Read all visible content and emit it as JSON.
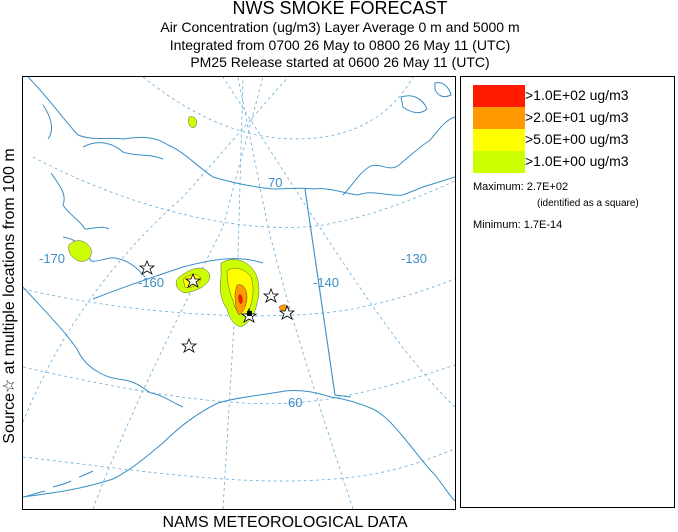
{
  "header": {
    "title": "NWS SMOKE FORECAST",
    "line2": "Air Concentration (ug/m3) Layer Average     0 m and  5000 m",
    "line3": "Integrated from 0700 26 May to 0800 26 May 11 (UTC)",
    "line4": "PM25 Release started at 0600 26 May 11 (UTC)"
  },
  "side_label": "Source☆ at multiple locations    from   100 m",
  "footer": "NAMS METEOROLOGICAL DATA",
  "legend": {
    "levels": [
      {
        "label": ">1.0E+02 ug/m3",
        "color": "#ff1a00"
      },
      {
        "label": ">2.0E+01 ug/m3",
        "color": "#ff9a00"
      },
      {
        "label": ">5.0E+00 ug/m3",
        "color": "#ffff00"
      },
      {
        "label": ">1.0E+00 ug/m3",
        "color": "#ccff00"
      }
    ],
    "maximum": "Maximum: 2.7E+02",
    "maximum_note": "(identified as a square)",
    "minimum": "Minimum: 1.7E-14"
  },
  "map": {
    "grid_labels": {
      "lat70": "70",
      "lat60": "60",
      "lon170": "-170",
      "lon160": "-160",
      "lon140": "-140",
      "lon130": "-130"
    },
    "line_color": "#3a8fc6"
  }
}
